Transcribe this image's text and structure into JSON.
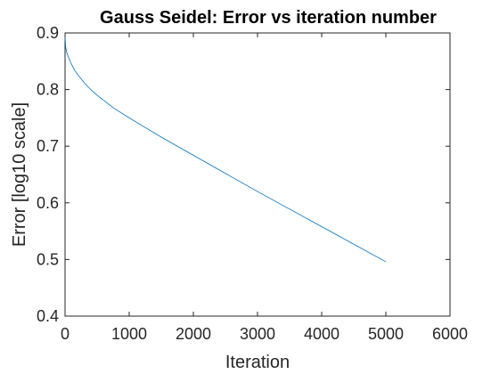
{
  "chart_data": {
    "type": "line",
    "title": "Gauss Seidel: Error vs iteration number",
    "xlabel": "Iteration",
    "ylabel": "Error [log10 scale]",
    "xlim": [
      0,
      6000
    ],
    "ylim": [
      0.4,
      0.9
    ],
    "xticks": [
      0,
      1000,
      2000,
      3000,
      4000,
      5000,
      6000
    ],
    "xtick_labels": [
      "0",
      "1000",
      "2000",
      "3000",
      "4000",
      "5000",
      "6000"
    ],
    "yticks": [
      0.4,
      0.5,
      0.6,
      0.7,
      0.8,
      0.9
    ],
    "ytick_labels": [
      "0.4",
      "0.5",
      "0.6",
      "0.7",
      "0.8",
      "0.9"
    ],
    "grid": false,
    "series": [
      {
        "color": "#0072BD",
        "x": [
          0,
          10,
          25,
          50,
          100,
          150,
          200,
          300,
          400,
          500,
          750,
          1000,
          1250,
          1500,
          2000,
          2500,
          3000,
          3500,
          4000,
          4500,
          5000
        ],
        "y": [
          0.892,
          0.875,
          0.866,
          0.858,
          0.845,
          0.834,
          0.826,
          0.812,
          0.8,
          0.79,
          0.768,
          0.75,
          0.733,
          0.716,
          0.684,
          0.652,
          0.62,
          0.589,
          0.558,
          0.527,
          0.496
        ]
      }
    ]
  }
}
